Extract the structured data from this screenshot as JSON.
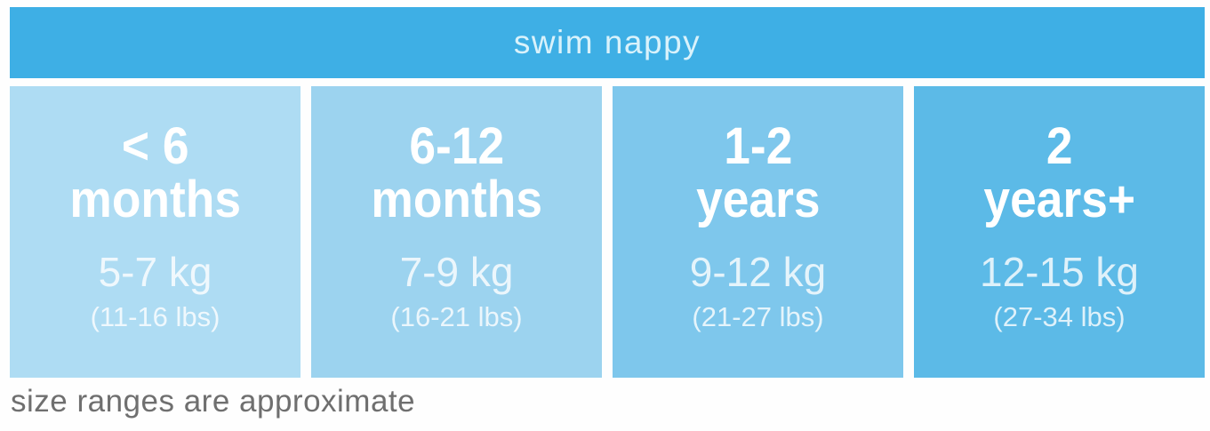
{
  "header": {
    "title": "swim nappy",
    "background": "#3EAFE5",
    "text_color": "#D9F2FB"
  },
  "sizes": [
    {
      "age_line1": "< 6",
      "age_line2": "months",
      "kg": "5-7 kg",
      "lbs": "(11-16 lbs)",
      "background": "#AEDCF3"
    },
    {
      "age_line1": "6-12",
      "age_line2": "months",
      "kg": "7-9 kg",
      "lbs": "(16-21 lbs)",
      "background": "#9CD3EF"
    },
    {
      "age_line1": "1-2",
      "age_line2": "years",
      "kg": "9-12 kg",
      "lbs": "(21-27 lbs)",
      "background": "#7EC7EC"
    },
    {
      "age_line1": "2",
      "age_line2": "years+",
      "kg": "12-15 kg",
      "lbs": "(27-34 lbs)",
      "background": "#5CBAE7"
    }
  ],
  "footnote": "size ranges are approximate",
  "chart_data": {
    "type": "table",
    "title": "swim nappy",
    "columns": [
      "< 6 months",
      "6-12 months",
      "1-2 years",
      "2 years+"
    ],
    "rows": [
      {
        "label": "weight_kg",
        "values": [
          "5-7 kg",
          "7-9 kg",
          "9-12 kg",
          "12-15 kg"
        ]
      },
      {
        "label": "weight_lbs",
        "values": [
          "(11-16 lbs)",
          "(16-21 lbs)",
          "(21-27 lbs)",
          "(27-34 lbs)"
        ]
      }
    ],
    "footnote": "size ranges are approximate",
    "layout": {
      "header_color": "#3EAFE5",
      "tile_colors": [
        "#AEDCF3",
        "#9CD3EF",
        "#7EC7EC",
        "#5CBAE7"
      ],
      "text_color": "#FFFFFF"
    }
  }
}
